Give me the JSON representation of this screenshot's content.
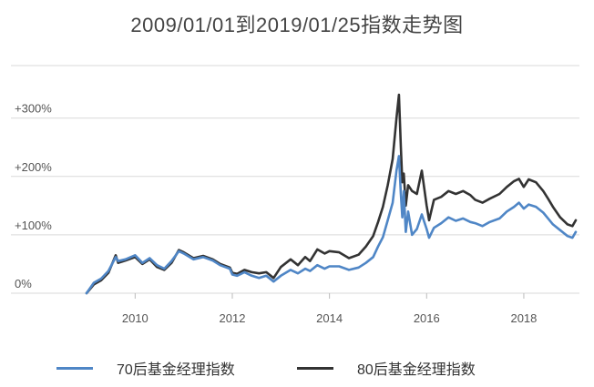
{
  "chart_data": {
    "type": "line",
    "title": "2009/01/01到2019/01/25指数走势图",
    "xlabel": "",
    "ylabel": "",
    "x_ticks": [
      "2010",
      "2012",
      "2014",
      "2016",
      "2018"
    ],
    "y_ticks": [
      "0%",
      "+100%",
      "+200%",
      "+300%"
    ],
    "xlim": [
      2009.0,
      2019.07
    ],
    "ylim": [
      0,
      390
    ],
    "grid": "horizontal",
    "legend_position": "bottom",
    "series": [
      {
        "name": "70后基金经理指数",
        "color": "#4F86C6",
        "points": [
          [
            2009.0,
            0
          ],
          [
            2009.15,
            18
          ],
          [
            2009.3,
            25
          ],
          [
            2009.45,
            38
          ],
          [
            2009.6,
            62
          ],
          [
            2009.65,
            55
          ],
          [
            2009.8,
            58
          ],
          [
            2010.0,
            65
          ],
          [
            2010.15,
            52
          ],
          [
            2010.3,
            60
          ],
          [
            2010.45,
            48
          ],
          [
            2010.6,
            42
          ],
          [
            2010.75,
            55
          ],
          [
            2010.9,
            72
          ],
          [
            2011.0,
            68
          ],
          [
            2011.2,
            58
          ],
          [
            2011.4,
            62
          ],
          [
            2011.6,
            56
          ],
          [
            2011.75,
            48
          ],
          [
            2011.95,
            42
          ],
          [
            2012.0,
            32
          ],
          [
            2012.1,
            30
          ],
          [
            2012.25,
            36
          ],
          [
            2012.4,
            30
          ],
          [
            2012.55,
            26
          ],
          [
            2012.7,
            30
          ],
          [
            2012.85,
            20
          ],
          [
            2013.0,
            30
          ],
          [
            2013.2,
            40
          ],
          [
            2013.35,
            34
          ],
          [
            2013.5,
            42
          ],
          [
            2013.6,
            38
          ],
          [
            2013.75,
            48
          ],
          [
            2013.9,
            42
          ],
          [
            2014.0,
            46
          ],
          [
            2014.2,
            46
          ],
          [
            2014.4,
            40
          ],
          [
            2014.6,
            44
          ],
          [
            2014.75,
            52
          ],
          [
            2014.9,
            62
          ],
          [
            2015.0,
            80
          ],
          [
            2015.1,
            96
          ],
          [
            2015.2,
            125
          ],
          [
            2015.3,
            155
          ],
          [
            2015.38,
            210
          ],
          [
            2015.43,
            235
          ],
          [
            2015.47,
            170
          ],
          [
            2015.5,
            130
          ],
          [
            2015.53,
            175
          ],
          [
            2015.57,
            105
          ],
          [
            2015.62,
            140
          ],
          [
            2015.7,
            100
          ],
          [
            2015.8,
            110
          ],
          [
            2015.9,
            135
          ],
          [
            2016.0,
            110
          ],
          [
            2016.05,
            95
          ],
          [
            2016.15,
            112
          ],
          [
            2016.3,
            120
          ],
          [
            2016.45,
            130
          ],
          [
            2016.6,
            124
          ],
          [
            2016.75,
            128
          ],
          [
            2016.9,
            122
          ],
          [
            2017.0,
            120
          ],
          [
            2017.15,
            115
          ],
          [
            2017.3,
            122
          ],
          [
            2017.5,
            128
          ],
          [
            2017.65,
            140
          ],
          [
            2017.8,
            148
          ],
          [
            2017.9,
            155
          ],
          [
            2018.0,
            145
          ],
          [
            2018.1,
            152
          ],
          [
            2018.25,
            148
          ],
          [
            2018.4,
            138
          ],
          [
            2018.5,
            128
          ],
          [
            2018.6,
            118
          ],
          [
            2018.75,
            108
          ],
          [
            2018.9,
            98
          ],
          [
            2019.0,
            95
          ],
          [
            2019.07,
            105
          ]
        ]
      },
      {
        "name": "80后基金经理指数",
        "color": "#333333",
        "points": [
          [
            2009.0,
            0
          ],
          [
            2009.15,
            15
          ],
          [
            2009.3,
            22
          ],
          [
            2009.45,
            35
          ],
          [
            2009.6,
            65
          ],
          [
            2009.65,
            52
          ],
          [
            2009.8,
            56
          ],
          [
            2010.0,
            62
          ],
          [
            2010.15,
            50
          ],
          [
            2010.3,
            58
          ],
          [
            2010.45,
            45
          ],
          [
            2010.6,
            40
          ],
          [
            2010.75,
            52
          ],
          [
            2010.9,
            74
          ],
          [
            2011.0,
            70
          ],
          [
            2011.2,
            60
          ],
          [
            2011.4,
            64
          ],
          [
            2011.6,
            58
          ],
          [
            2011.75,
            50
          ],
          [
            2011.95,
            44
          ],
          [
            2012.0,
            35
          ],
          [
            2012.1,
            33
          ],
          [
            2012.25,
            40
          ],
          [
            2012.4,
            36
          ],
          [
            2012.55,
            34
          ],
          [
            2012.7,
            36
          ],
          [
            2012.85,
            26
          ],
          [
            2013.0,
            45
          ],
          [
            2013.2,
            58
          ],
          [
            2013.35,
            48
          ],
          [
            2013.5,
            62
          ],
          [
            2013.6,
            55
          ],
          [
            2013.75,
            75
          ],
          [
            2013.9,
            68
          ],
          [
            2014.0,
            72
          ],
          [
            2014.2,
            70
          ],
          [
            2014.4,
            60
          ],
          [
            2014.6,
            66
          ],
          [
            2014.75,
            80
          ],
          [
            2014.9,
            98
          ],
          [
            2015.0,
            122
          ],
          [
            2015.1,
            148
          ],
          [
            2015.2,
            185
          ],
          [
            2015.3,
            230
          ],
          [
            2015.38,
            300
          ],
          [
            2015.43,
            340
          ],
          [
            2015.47,
            250
          ],
          [
            2015.5,
            190
          ],
          [
            2015.53,
            205
          ],
          [
            2015.57,
            150
          ],
          [
            2015.62,
            185
          ],
          [
            2015.7,
            175
          ],
          [
            2015.8,
            170
          ],
          [
            2015.9,
            210
          ],
          [
            2016.0,
            150
          ],
          [
            2016.05,
            125
          ],
          [
            2016.15,
            160
          ],
          [
            2016.3,
            165
          ],
          [
            2016.45,
            175
          ],
          [
            2016.6,
            170
          ],
          [
            2016.75,
            175
          ],
          [
            2016.9,
            168
          ],
          [
            2017.0,
            160
          ],
          [
            2017.15,
            155
          ],
          [
            2017.3,
            162
          ],
          [
            2017.5,
            170
          ],
          [
            2017.65,
            182
          ],
          [
            2017.8,
            192
          ],
          [
            2017.9,
            196
          ],
          [
            2018.0,
            182
          ],
          [
            2018.1,
            195
          ],
          [
            2018.25,
            190
          ],
          [
            2018.4,
            175
          ],
          [
            2018.5,
            162
          ],
          [
            2018.6,
            148
          ],
          [
            2018.75,
            130
          ],
          [
            2018.9,
            118
          ],
          [
            2019.0,
            115
          ],
          [
            2019.07,
            125
          ]
        ]
      }
    ]
  }
}
